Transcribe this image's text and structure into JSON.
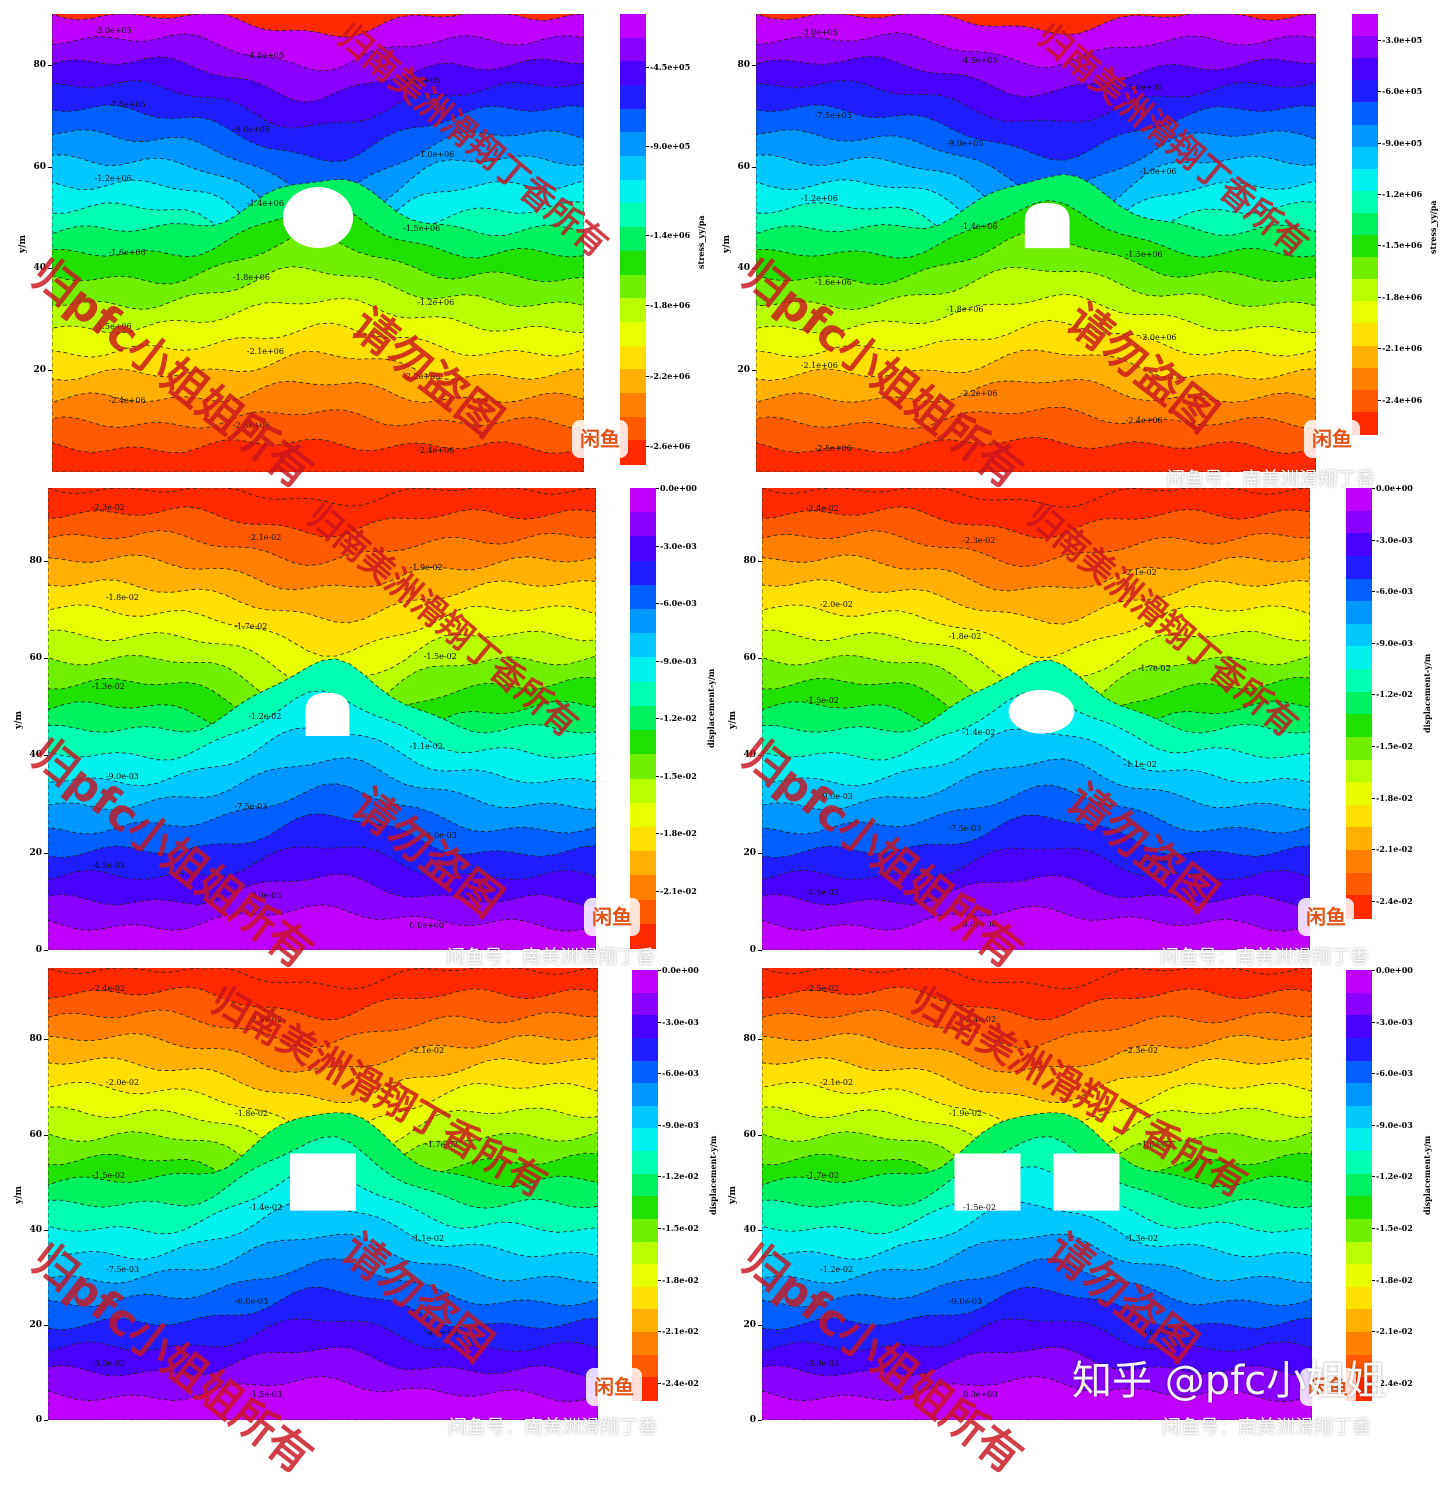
{
  "chart_data": [
    {
      "type": "heatmap",
      "title": "",
      "ylabel": "y/m",
      "colorbar_label": "stress_yy/pa",
      "y_ticks": [
        "20",
        "40",
        "60",
        "80"
      ],
      "ylim": [
        0,
        90
      ],
      "colorbar_ticks": [
        "-4.5e+05",
        "-9.0e+05",
        "-1.4e+06",
        "-1.8e+06",
        "-2.2e+06",
        "-2.6e+06"
      ],
      "color_range": [
        -2700000.0,
        -150000.0
      ],
      "opening": {
        "shape": "circle",
        "center_x": 50,
        "center_y": 50,
        "radius": 6
      },
      "contour_labels": [
        "-3.0e+05",
        "-4.5e+05",
        "-6.0e+05",
        "-7.5e+05",
        "-9.0e+05",
        "-1.0e+06",
        "-1.2e+06",
        "-1.4e+06",
        "-1.5e+06",
        "-1.6e+06",
        "-1.8e+06",
        "-1.2e+06",
        "-1.5e+06",
        "-2.1e+06",
        "-2.2e+06",
        "-2.4e+06",
        "-2.6e+06",
        "-2.4e+06"
      ]
    },
    {
      "type": "heatmap",
      "title": "",
      "ylabel": "y/m",
      "colorbar_label": "stress_yy/pa",
      "y_ticks": [
        "20",
        "40",
        "60",
        "80"
      ],
      "ylim": [
        0,
        90
      ],
      "colorbar_ticks": [
        "-3.0e+05",
        "-6.0e+05",
        "-9.0e+05",
        "-1.2e+06",
        "-1.5e+06",
        "-1.8e+06",
        "-2.1e+06",
        "-2.4e+06"
      ],
      "color_range": [
        -2600000.0,
        -150000.0
      ],
      "opening": {
        "shape": "horseshoe",
        "center_x": 52,
        "center_y": 48,
        "width": 8,
        "height": 8
      },
      "contour_labels": [
        "-3.0e+05",
        "-4.5e+05",
        "-6.0e+05",
        "-7.5e+05",
        "-9.0e+05",
        "-1.0e+06",
        "-1.2e+06",
        "-1.4e+06",
        "-1.5e+06",
        "-1.6e+06",
        "-1.8e+06",
        "-2.0e+06",
        "-2.1e+06",
        "-2.2e+06",
        "-2.4e+06",
        "-2.5e+06"
      ]
    },
    {
      "type": "heatmap",
      "title": "",
      "ylabel": "y/m",
      "colorbar_label": "displacement-y/m",
      "y_ticks": [
        "0",
        "20",
        "40",
        "60",
        "80"
      ],
      "ylim": [
        0,
        95
      ],
      "colorbar_ticks": [
        "0.0e+00",
        "-3.0e-03",
        "-6.0e-03",
        "-9.0e-03",
        "-1.2e-02",
        "-1.5e-02",
        "-1.8e-02",
        "-2.1e-02"
      ],
      "color_range": [
        -0.024,
        0.0
      ],
      "opening": {
        "shape": "horseshoe",
        "center_x": 51,
        "center_y": 48,
        "width": 8,
        "height": 8
      },
      "contour_labels": [
        "-2.3e-02",
        "-2.1e-02",
        "-1.9e-02",
        "-1.8e-02",
        "-1.7e-02",
        "-1.5e-02",
        "-1.3e-02",
        "-1.2e-02",
        "-1.1e-02",
        "-9.0e-03",
        "-7.5e-03",
        "-6.0e-03",
        "-4.5e-03",
        "-3.0e-03",
        "0.0e+00"
      ]
    },
    {
      "type": "heatmap",
      "title": "",
      "ylabel": "y/m",
      "colorbar_label": "displacement-y/m",
      "y_ticks": [
        "0",
        "20",
        "40",
        "60",
        "80"
      ],
      "ylim": [
        0,
        95
      ],
      "colorbar_ticks": [
        "0.0e+00",
        "-3.0e-03",
        "-6.0e-03",
        "-9.0e-03",
        "-1.2e-02",
        "-1.5e-02",
        "-1.8e-02",
        "-2.1e-02",
        "-2.4e-02"
      ],
      "color_range": [
        -0.025,
        0.0
      ],
      "opening": {
        "shape": "ellipse",
        "center_x": 51,
        "center_y": 49,
        "width": 12,
        "height": 9
      },
      "contour_labels": [
        "-2.4e-02",
        "-2.3e-02",
        "-2.1e-02",
        "-2.0e-02",
        "-1.8e-02",
        "-1.7e-02",
        "-1.5e-02",
        "-1.4e-02",
        "-1.1e-02",
        "-9.0e-03",
        "-7.5e-03",
        "-6.0e-03",
        "-4.5e-03",
        "0.0e+00"
      ]
    },
    {
      "type": "heatmap",
      "title": "",
      "ylabel": "y/m",
      "colorbar_label": "displacement-y/m",
      "y_ticks": [
        "0",
        "20",
        "40",
        "60",
        "80"
      ],
      "ylim": [
        0,
        95
      ],
      "colorbar_ticks": [
        "0.0e+00",
        "-3.0e-03",
        "-6.0e-03",
        "-9.0e-03",
        "-1.2e-02",
        "-1.5e-02",
        "-1.8e-02",
        "-2.1e-02",
        "-2.4e-02"
      ],
      "color_range": [
        -0.025,
        0.0
      ],
      "opening": {
        "shape": "rectangle",
        "center_x": 50,
        "center_y": 50,
        "width": 12,
        "height": 12
      },
      "contour_labels": [
        "-2.4e-02",
        "-2.3e-02",
        "-2.1e-02",
        "-2.0e-02",
        "-1.8e-02",
        "-1.7e-02",
        "-1.5e-02",
        "-1.4e-02",
        "-1.1e-02",
        "-7.5e-03",
        "-6.0e-03",
        "-4.5e-03",
        "-3.0e-03",
        "-1.5e-03"
      ]
    },
    {
      "type": "heatmap",
      "title": "",
      "ylabel": "y/m",
      "colorbar_label": "displacement-y/m",
      "y_ticks": [
        "0",
        "20",
        "40",
        "60",
        "80"
      ],
      "ylim": [
        0,
        95
      ],
      "colorbar_ticks": [
        "0.0e+00",
        "-3.0e-03",
        "-6.0e-03",
        "-9.0e-03",
        "-1.2e-02",
        "-1.5e-02",
        "-1.8e-02",
        "-2.1e-02",
        "-2.4e-02"
      ],
      "color_range": [
        -0.025,
        0.0
      ],
      "opening": {
        "shape": "twin-rectangle",
        "center_x": 50,
        "center_y": 50,
        "width": 12,
        "height": 12,
        "gap": 6
      },
      "contour_labels": [
        "-2.5e-02",
        "-2.4e-02",
        "-2.3e-02",
        "-2.1e-02",
        "-1.9e-02",
        "-1.8e-02",
        "-1.7e-02",
        "-1.5e-02",
        "-1.3e-02",
        "-1.2e-02",
        "-9.0e-03",
        "-6.0e-03",
        "-3.0e-03",
        "0.0e+00"
      ]
    }
  ],
  "watermarks": {
    "owner_red": "归pfc小姐姐所有",
    "no_steal": "请勿盗图",
    "owner_red_2": "归南美洲滑翔丁香所有",
    "xianyu_id": "闲鱼号：南美洲滑翔丁香",
    "badge_text": "闲鱼",
    "zhihu": "知乎 @pfc小姐姐"
  },
  "colors": {
    "palette": [
      "#c000ff",
      "#8a00ff",
      "#4a00ff",
      "#1e1eff",
      "#0060ff",
      "#0096ff",
      "#00c8ff",
      "#00f0f0",
      "#00ffb0",
      "#00f060",
      "#20e000",
      "#70f000",
      "#b8ff00",
      "#e8ff00",
      "#ffe000",
      "#ffb000",
      "#ff8000",
      "#ff5a00",
      "#ff2a00"
    ]
  }
}
